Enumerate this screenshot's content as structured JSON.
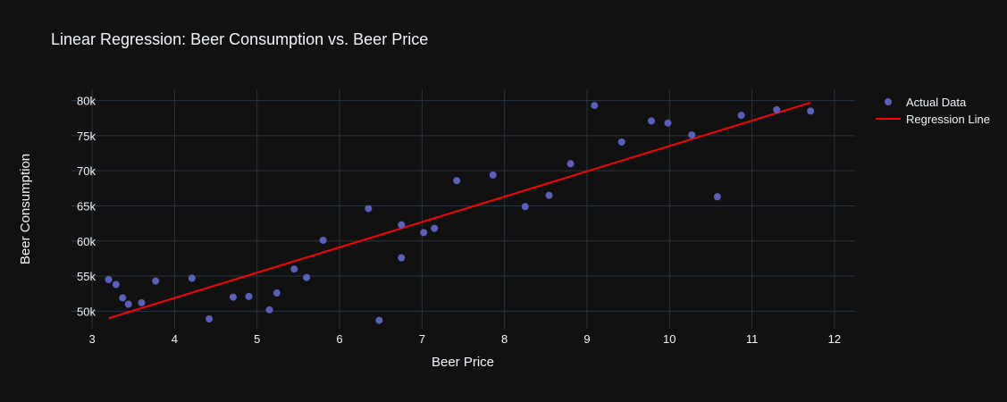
{
  "chart_data": {
    "type": "scatter",
    "title": "Linear Regression: Beer Consumption vs. Beer Price",
    "xlabel": "Beer Price",
    "ylabel": "Beer Consumption",
    "xlim": [
      2.75,
      12.25
    ],
    "ylim": [
      47500,
      81600
    ],
    "x_ticks": [
      3,
      4,
      5,
      6,
      7,
      8,
      9,
      10,
      11,
      12
    ],
    "x_tick_labels": [
      "3",
      "4",
      "5",
      "6",
      "7",
      "8",
      "9",
      "10",
      "11",
      "12"
    ],
    "y_ticks": [
      50000,
      55000,
      60000,
      65000,
      70000,
      75000,
      80000
    ],
    "y_tick_labels": [
      "50k",
      "55k",
      "60k",
      "65k",
      "70k",
      "75k",
      "80k"
    ],
    "grid": true,
    "legend_position": "top-right",
    "series": [
      {
        "name": "Actual Data",
        "kind": "markers",
        "color": "#5a5fbe",
        "points": [
          [
            3.2,
            54500
          ],
          [
            3.29,
            53800
          ],
          [
            3.37,
            51900
          ],
          [
            3.44,
            51000
          ],
          [
            3.6,
            51200
          ],
          [
            3.77,
            54300
          ],
          [
            4.21,
            54700
          ],
          [
            4.42,
            48900
          ],
          [
            4.71,
            52000
          ],
          [
            4.9,
            52100
          ],
          [
            5.15,
            50200
          ],
          [
            5.24,
            52600
          ],
          [
            5.45,
            56000
          ],
          [
            5.6,
            54800
          ],
          [
            5.8,
            60100
          ],
          [
            6.35,
            64600
          ],
          [
            6.48,
            48700
          ],
          [
            6.75,
            62300
          ],
          [
            6.75,
            57600
          ],
          [
            7.02,
            61200
          ],
          [
            7.15,
            61800
          ],
          [
            7.42,
            68600
          ],
          [
            7.86,
            69400
          ],
          [
            8.25,
            64900
          ],
          [
            8.54,
            66500
          ],
          [
            8.8,
            71000
          ],
          [
            9.09,
            79300
          ],
          [
            9.42,
            74100
          ],
          [
            9.78,
            77100
          ],
          [
            9.98,
            76800
          ],
          [
            10.27,
            75100
          ],
          [
            10.58,
            66300
          ],
          [
            10.87,
            77900
          ],
          [
            11.3,
            78700
          ],
          [
            11.71,
            78500
          ]
        ]
      },
      {
        "name": "Regression Line",
        "kind": "line",
        "color": "#ff0000",
        "points": [
          [
            3.2,
            49000
          ],
          [
            11.71,
            79700
          ]
        ]
      }
    ]
  }
}
